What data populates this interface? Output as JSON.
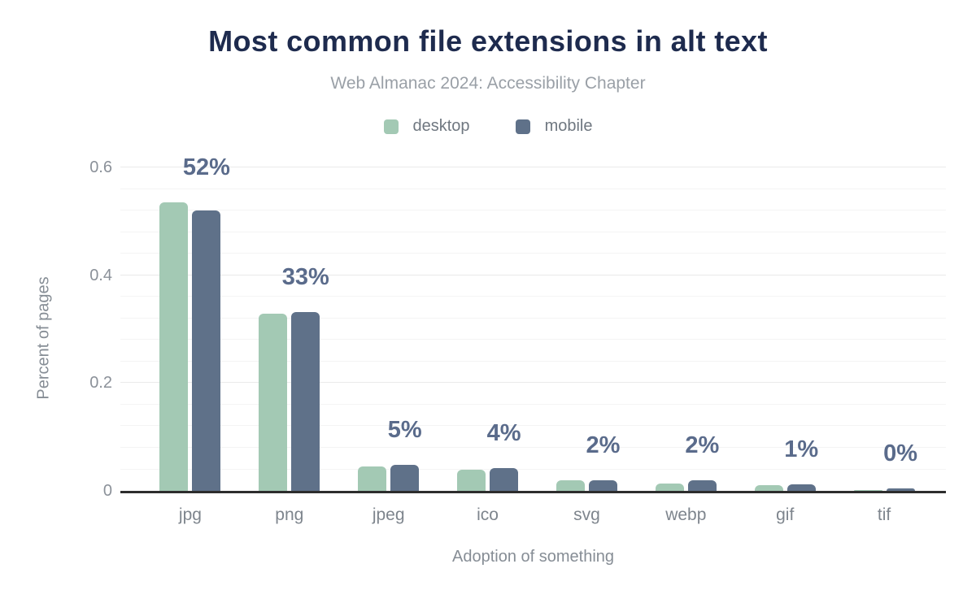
{
  "figure": {
    "title": "Most common file extensions in alt text",
    "subtitle": "Web Almanac 2024: Accessibility Chapter"
  },
  "colors": {
    "title": "#1e2b4e",
    "subtitle": "#9aa0a7",
    "legend_text": "#6f7780",
    "desktop": "#a3c9b4",
    "mobile": "#5f7189",
    "data_label": "#5a6b8b",
    "axis_line": "#2d2d2d",
    "grid_minor": "#f4f4f4",
    "grid_major": "#eaeaea",
    "tick_label": "#8b9199",
    "category_label": "#7e858d",
    "axis_title": "#868d95"
  },
  "chart_data": {
    "type": "bar",
    "title": "Most common file extensions in alt text",
    "subtitle": "Web Almanac 2024: Accessibility Chapter",
    "categories": [
      "jpg",
      "png",
      "jpeg",
      "ico",
      "svg",
      "webp",
      "gif",
      "tif"
    ],
    "series": [
      {
        "name": "desktop",
        "color": "#a3c9b4",
        "values": [
          0.535,
          0.328,
          0.045,
          0.04,
          0.019,
          0.014,
          0.011,
          0.001
        ]
      },
      {
        "name": "mobile",
        "color": "#5f7189",
        "values": [
          0.52,
          0.332,
          0.049,
          0.043,
          0.019,
          0.019,
          0.012,
          0.004
        ]
      }
    ],
    "data_labels": [
      "52%",
      "33%",
      "5%",
      "4%",
      "2%",
      "2%",
      "1%",
      "0%"
    ],
    "xlabel": "Adoption of something",
    "ylabel": "Percent of pages",
    "ylim": [
      0,
      0.6
    ],
    "yticks": [
      0,
      0.2,
      0.4,
      0.6
    ],
    "ytick_labels": [
      "0",
      "0.2",
      "0.4",
      "0.6"
    ],
    "grid_step": 0.04,
    "grid": true,
    "legend_position": "top"
  }
}
